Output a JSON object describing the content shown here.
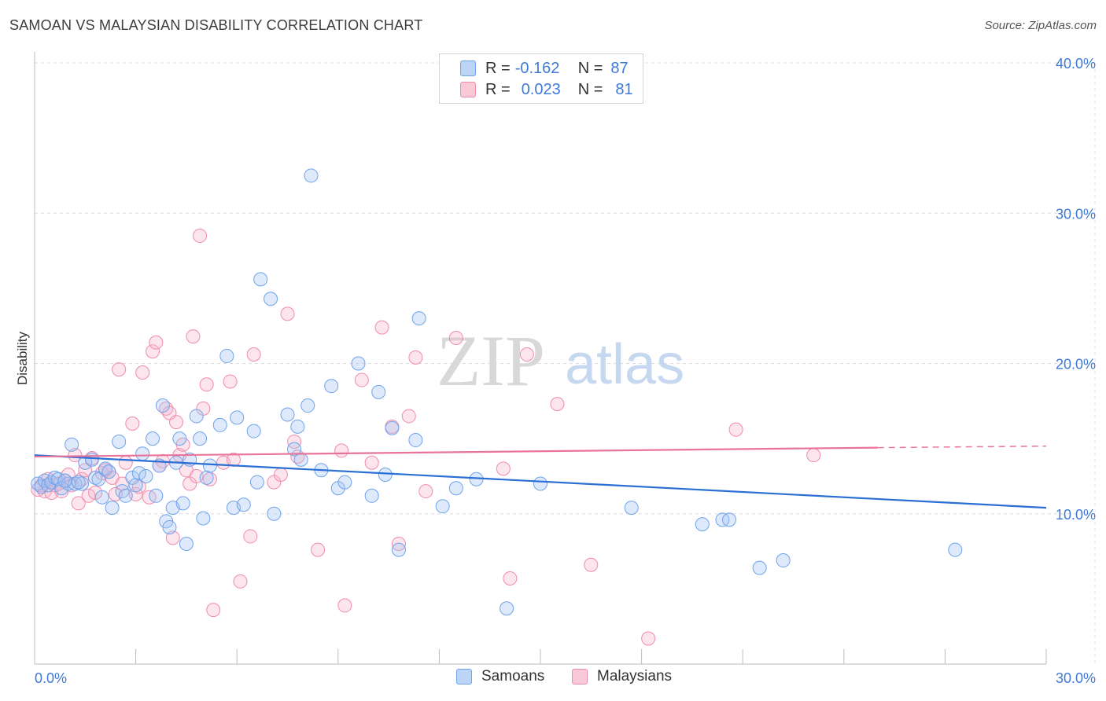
{
  "header": {
    "title": "SAMOAN VS MALAYSIAN DISABILITY CORRELATION CHART",
    "source": "Source: ZipAtlas.com"
  },
  "watermark": {
    "zip": "ZIP",
    "atlas": "atlas"
  },
  "legend": {
    "rows": [
      {
        "r_label": "R =",
        "r_value": "-0.162",
        "n_label": "N =",
        "n_value": "87",
        "color": "#6fa3ec",
        "fill": "#bcd5f7"
      },
      {
        "r_label": "R =",
        "r_value": "0.023",
        "n_label": "N =",
        "n_value": "81",
        "color": "#f08cab",
        "fill": "#f9c9d8"
      }
    ]
  },
  "bottom_legend": [
    {
      "label": "Samoans",
      "color": "#6fa3ec",
      "fill": "#bcd5f7"
    },
    {
      "label": "Malaysians",
      "color": "#f08cab",
      "fill": "#f9c9d8"
    }
  ],
  "colors": {
    "blue_line": "#2a6fd4",
    "pink_line": "#e8739b",
    "grid": "#dcdcdc",
    "tick_text": "#3f7ad6"
  },
  "chart_data": {
    "type": "scatter",
    "title": "SAMOAN VS MALAYSIAN DISABILITY CORRELATION CHART",
    "xlabel": "",
    "ylabel": "Disability",
    "xlim": [
      0,
      30
    ],
    "ylim": [
      0,
      40
    ],
    "x_tick_labels": [
      "0.0%",
      "30.0%"
    ],
    "y_ticks": [
      10,
      20,
      30,
      40
    ],
    "y_tick_labels": [
      "10.0%",
      "20.0%",
      "30.0%",
      "40.0%"
    ],
    "grid": true,
    "legend_position": "top-center",
    "series": [
      {
        "name": "Samoans",
        "color": "#6fa3ec",
        "trend": {
          "x": [
            0,
            30
          ],
          "y": [
            13.9,
            10.4
          ]
        },
        "points": [
          [
            0.1,
            12.0
          ],
          [
            0.2,
            11.8
          ],
          [
            0.3,
            12.2
          ],
          [
            0.4,
            11.9
          ],
          [
            0.5,
            12.1
          ],
          [
            0.6,
            12.4
          ],
          [
            0.7,
            12.3
          ],
          [
            0.8,
            11.7
          ],
          [
            1.0,
            12.0
          ],
          [
            1.1,
            14.6
          ],
          [
            1.2,
            12.0
          ],
          [
            1.4,
            12.0
          ],
          [
            1.5,
            13.4
          ],
          [
            1.7,
            13.6
          ],
          [
            1.8,
            12.4
          ],
          [
            1.9,
            12.3
          ],
          [
            2.0,
            11.1
          ],
          [
            2.1,
            13.0
          ],
          [
            2.3,
            10.4
          ],
          [
            2.5,
            14.8
          ],
          [
            2.6,
            11.5
          ],
          [
            2.7,
            11.2
          ],
          [
            2.9,
            12.4
          ],
          [
            3.0,
            11.9
          ],
          [
            3.1,
            12.7
          ],
          [
            3.2,
            14.0
          ],
          [
            3.3,
            12.5
          ],
          [
            3.5,
            15.0
          ],
          [
            3.6,
            11.2
          ],
          [
            3.7,
            13.2
          ],
          [
            3.8,
            17.2
          ],
          [
            3.9,
            9.5
          ],
          [
            4.0,
            9.1
          ],
          [
            4.1,
            10.4
          ],
          [
            4.2,
            13.4
          ],
          [
            4.3,
            15.0
          ],
          [
            4.4,
            10.7
          ],
          [
            4.5,
            8.0
          ],
          [
            4.6,
            13.6
          ],
          [
            4.8,
            16.5
          ],
          [
            4.9,
            15.0
          ],
          [
            5.0,
            9.7
          ],
          [
            5.1,
            12.4
          ],
          [
            5.2,
            13.2
          ],
          [
            5.5,
            15.9
          ],
          [
            5.7,
            20.5
          ],
          [
            5.9,
            10.4
          ],
          [
            6.0,
            16.4
          ],
          [
            6.2,
            10.6
          ],
          [
            6.5,
            15.5
          ],
          [
            6.6,
            12.1
          ],
          [
            6.7,
            25.6
          ],
          [
            7.0,
            24.3
          ],
          [
            7.1,
            10.0
          ],
          [
            7.5,
            16.6
          ],
          [
            7.7,
            14.3
          ],
          [
            7.8,
            15.8
          ],
          [
            7.9,
            13.6
          ],
          [
            8.1,
            17.2
          ],
          [
            8.2,
            32.5
          ],
          [
            8.5,
            12.9
          ],
          [
            8.8,
            18.5
          ],
          [
            9.0,
            11.7
          ],
          [
            9.2,
            12.1
          ],
          [
            9.6,
            20.0
          ],
          [
            10.0,
            11.2
          ],
          [
            10.2,
            18.1
          ],
          [
            10.4,
            12.6
          ],
          [
            10.6,
            15.7
          ],
          [
            10.8,
            7.6
          ],
          [
            11.3,
            14.9
          ],
          [
            11.4,
            23.0
          ],
          [
            12.1,
            10.5
          ],
          [
            12.5,
            11.7
          ],
          [
            13.1,
            12.3
          ],
          [
            14.0,
            3.7
          ],
          [
            15.0,
            12.0
          ],
          [
            17.7,
            10.4
          ],
          [
            19.8,
            9.3
          ],
          [
            20.4,
            9.6
          ],
          [
            20.6,
            9.6
          ],
          [
            21.5,
            6.4
          ],
          [
            22.2,
            6.9
          ],
          [
            27.3,
            7.6
          ],
          [
            1.3,
            12.1
          ],
          [
            2.2,
            12.8
          ],
          [
            0.9,
            12.2
          ]
        ]
      },
      {
        "name": "Malaysians",
        "color": "#f08cab",
        "trend": {
          "x": [
            0,
            25
          ],
          "y": [
            13.8,
            14.4
          ]
        },
        "trend_dashed": {
          "x": [
            25,
            30
          ],
          "y": [
            14.4,
            14.5
          ]
        },
        "points": [
          [
            0.1,
            11.6
          ],
          [
            0.2,
            11.9
          ],
          [
            0.3,
            11.5
          ],
          [
            0.4,
            12.3
          ],
          [
            0.5,
            11.4
          ],
          [
            0.6,
            11.9
          ],
          [
            0.7,
            12.0
          ],
          [
            0.8,
            11.5
          ],
          [
            0.9,
            12.2
          ],
          [
            1.0,
            12.6
          ],
          [
            1.1,
            11.9
          ],
          [
            1.2,
            13.9
          ],
          [
            1.3,
            10.7
          ],
          [
            1.4,
            12.3
          ],
          [
            1.5,
            12.9
          ],
          [
            1.6,
            11.2
          ],
          [
            1.7,
            13.7
          ],
          [
            1.8,
            11.4
          ],
          [
            2.0,
            12.7
          ],
          [
            2.1,
            12.9
          ],
          [
            2.2,
            12.8
          ],
          [
            2.3,
            12.4
          ],
          [
            2.4,
            11.3
          ],
          [
            2.5,
            19.6
          ],
          [
            2.6,
            12.0
          ],
          [
            2.7,
            13.4
          ],
          [
            2.9,
            16.0
          ],
          [
            3.0,
            11.3
          ],
          [
            3.1,
            11.8
          ],
          [
            3.2,
            19.4
          ],
          [
            3.4,
            11.1
          ],
          [
            3.5,
            20.8
          ],
          [
            3.6,
            21.4
          ],
          [
            3.7,
            13.2
          ],
          [
            3.8,
            13.5
          ],
          [
            3.9,
            17.0
          ],
          [
            4.0,
            16.7
          ],
          [
            4.1,
            8.4
          ],
          [
            4.2,
            16.1
          ],
          [
            4.3,
            13.9
          ],
          [
            4.4,
            14.6
          ],
          [
            4.5,
            12.9
          ],
          [
            4.6,
            12.0
          ],
          [
            4.7,
            21.8
          ],
          [
            4.8,
            12.5
          ],
          [
            4.9,
            28.5
          ],
          [
            5.0,
            17.0
          ],
          [
            5.1,
            18.6
          ],
          [
            5.2,
            12.3
          ],
          [
            5.3,
            3.6
          ],
          [
            5.6,
            13.4
          ],
          [
            5.8,
            18.8
          ],
          [
            5.9,
            13.6
          ],
          [
            6.1,
            5.5
          ],
          [
            6.4,
            8.5
          ],
          [
            6.5,
            20.6
          ],
          [
            7.1,
            12.1
          ],
          [
            7.3,
            12.6
          ],
          [
            7.5,
            23.3
          ],
          [
            7.7,
            14.8
          ],
          [
            7.8,
            13.8
          ],
          [
            8.4,
            7.6
          ],
          [
            9.1,
            14.2
          ],
          [
            9.2,
            3.9
          ],
          [
            9.7,
            18.9
          ],
          [
            10.0,
            13.4
          ],
          [
            10.3,
            22.4
          ],
          [
            10.6,
            15.8
          ],
          [
            10.8,
            8.0
          ],
          [
            11.1,
            16.5
          ],
          [
            11.3,
            20.4
          ],
          [
            11.6,
            11.5
          ],
          [
            12.5,
            21.7
          ],
          [
            13.9,
            13.0
          ],
          [
            14.1,
            5.7
          ],
          [
            14.6,
            20.6
          ],
          [
            15.5,
            17.3
          ],
          [
            16.5,
            6.6
          ],
          [
            18.2,
            1.7
          ],
          [
            20.8,
            15.6
          ],
          [
            23.1,
            13.9
          ]
        ]
      }
    ]
  }
}
